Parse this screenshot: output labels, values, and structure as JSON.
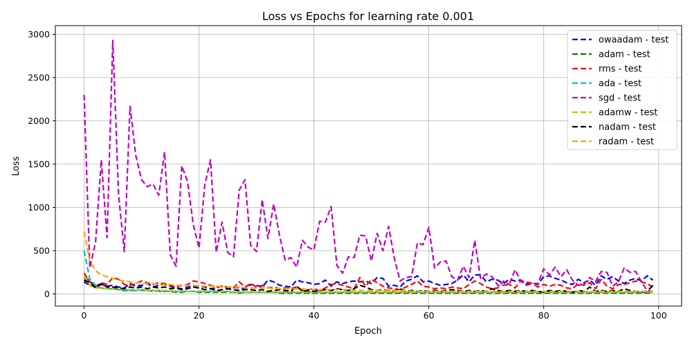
{
  "chart_data": {
    "type": "line",
    "title": "Loss vs Epochs for learning rate 0.001",
    "xlabel": "Epoch",
    "ylabel": "Loss",
    "xlim": [
      -5,
      104
    ],
    "ylim": [
      -140,
      3100
    ],
    "xticks": [
      0,
      20,
      40,
      60,
      80,
      100
    ],
    "yticks": [
      0,
      500,
      1000,
      1500,
      2000,
      2500,
      3000
    ],
    "grid": true,
    "legend_position": "top-right",
    "line_style": "dashed",
    "x": [
      0,
      1,
      2,
      3,
      4,
      5,
      6,
      7,
      8,
      9,
      10,
      11,
      12,
      13,
      14,
      15,
      16,
      17,
      18,
      19,
      20,
      21,
      22,
      23,
      24,
      25,
      26,
      27,
      28,
      29,
      30,
      31,
      32,
      33,
      34,
      35,
      36,
      37,
      38,
      39,
      40,
      41,
      42,
      43,
      44,
      45,
      46,
      47,
      48,
      49,
      50,
      51,
      52,
      53,
      54,
      55,
      56,
      57,
      58,
      59,
      60,
      61,
      62,
      63,
      64,
      65,
      66,
      67,
      68,
      69,
      70,
      71,
      72,
      73,
      74,
      75,
      76,
      77,
      78,
      79,
      80,
      81,
      82,
      83,
      84,
      85,
      86,
      87,
      88,
      89,
      90,
      91,
      92,
      93,
      94,
      95,
      96,
      97,
      98,
      99
    ],
    "series": [
      {
        "name": "owaadam - test",
        "color": "#0000ff",
        "values": [
          140,
          100,
          80,
          110,
          90,
          100,
          80,
          70,
          120,
          90,
          100,
          120,
          80,
          100,
          110,
          90,
          70,
          60,
          80,
          100,
          90,
          80,
          60,
          70,
          90,
          60,
          80,
          70,
          60,
          110,
          100,
          80,
          160,
          140,
          100,
          90,
          80,
          160,
          140,
          130,
          110,
          120,
          160,
          90,
          140,
          120,
          140,
          150,
          140,
          150,
          120,
          190,
          180,
          90,
          100,
          80,
          150,
          170,
          210,
          140,
          150,
          120,
          100,
          110,
          120,
          160,
          220,
          140,
          220,
          220,
          140,
          170,
          160,
          120,
          170,
          150,
          160,
          120,
          130,
          110,
          200,
          210,
          180,
          160,
          130,
          110,
          170,
          130,
          160,
          100,
          210,
          170,
          200,
          150,
          120,
          160,
          180,
          150,
          210,
          160
        ]
      },
      {
        "name": "adam - test",
        "color": "#008000",
        "values": [
          180,
          160,
          80,
          70,
          60,
          60,
          50,
          40,
          40,
          40,
          50,
          40,
          30,
          40,
          30,
          30,
          20,
          20,
          30,
          30,
          20,
          20,
          20,
          20,
          20,
          20,
          20,
          10,
          20,
          20,
          20,
          20,
          20,
          20,
          10,
          10,
          10,
          10,
          10,
          10,
          10,
          10,
          10,
          10,
          10,
          10,
          10,
          10,
          10,
          10,
          10,
          10,
          10,
          10,
          10,
          10,
          10,
          10,
          10,
          10,
          10,
          10,
          10,
          10,
          10,
          10,
          10,
          10,
          10,
          10,
          10,
          10,
          10,
          10,
          10,
          10,
          10,
          10,
          10,
          10,
          10,
          10,
          10,
          10,
          10,
          10,
          10,
          10,
          10,
          10,
          10,
          10,
          10,
          10,
          10,
          10,
          10,
          10,
          10,
          10
        ]
      },
      {
        "name": "rms - test",
        "color": "#ff0000",
        "values": [
          240,
          140,
          90,
          130,
          110,
          190,
          170,
          110,
          100,
          120,
          150,
          130,
          110,
          130,
          120,
          100,
          80,
          100,
          110,
          150,
          140,
          120,
          100,
          80,
          90,
          80,
          70,
          140,
          80,
          120,
          80,
          100,
          70,
          80,
          60,
          70,
          60,
          80,
          40,
          50,
          60,
          40,
          70,
          110,
          120,
          100,
          80,
          60,
          190,
          90,
          170,
          130,
          90,
          70,
          60,
          50,
          80,
          110,
          150,
          90,
          80,
          60,
          70,
          60,
          80,
          70,
          60,
          110,
          150,
          120,
          80,
          60,
          70,
          150,
          110,
          70,
          150,
          140,
          120,
          80,
          110,
          90,
          110,
          100,
          70,
          60,
          120,
          100,
          130,
          60,
          170,
          90,
          60,
          110,
          110,
          130,
          150,
          140,
          120,
          80
        ]
      },
      {
        "name": "ada - test",
        "color": "#00bfbf",
        "values": [
          500,
          170,
          100,
          70,
          60,
          60,
          50,
          50,
          40,
          40,
          40,
          40,
          40,
          30,
          30,
          30,
          30,
          30,
          30,
          30,
          30,
          30,
          30,
          30,
          30,
          30,
          20,
          20,
          20,
          20,
          20,
          20,
          20,
          20,
          20,
          20,
          20,
          20,
          20,
          20,
          20,
          20,
          20,
          20,
          20,
          20,
          20,
          20,
          20,
          20,
          20,
          20,
          20,
          20,
          20,
          20,
          20,
          20,
          20,
          20,
          20,
          20,
          20,
          20,
          20,
          20,
          20,
          20,
          20,
          20,
          20,
          20,
          20,
          20,
          20,
          20,
          20,
          20,
          20,
          20,
          20,
          20,
          20,
          20,
          20,
          20,
          20,
          20,
          20,
          20,
          20,
          20,
          20,
          20,
          20,
          20,
          20,
          20,
          20,
          20
        ]
      },
      {
        "name": "sgd - test",
        "color": "#bf00bf",
        "values": [
          2300,
          300,
          600,
          1550,
          650,
          2930,
          1150,
          490,
          2170,
          1600,
          1320,
          1240,
          1270,
          1140,
          1640,
          450,
          320,
          1480,
          1300,
          800,
          530,
          1260,
          1550,
          480,
          830,
          480,
          430,
          1200,
          1320,
          560,
          490,
          1090,
          640,
          1040,
          680,
          390,
          420,
          310,
          620,
          540,
          510,
          840,
          830,
          1010,
          330,
          240,
          430,
          420,
          680,
          670,
          380,
          700,
          500,
          780,
          410,
          150,
          190,
          200,
          590,
          570,
          770,
          300,
          370,
          380,
          200,
          160,
          320,
          190,
          620,
          180,
          230,
          200,
          100,
          100,
          110,
          280,
          150,
          100,
          120,
          120,
          290,
          220,
          310,
          200,
          280,
          160,
          100,
          110,
          190,
          140,
          260,
          250,
          90,
          140,
          300,
          250,
          260,
          140,
          40,
          30
        ]
      },
      {
        "name": "adamw - test",
        "color": "#bfbf00",
        "values": [
          200,
          100,
          70,
          70,
          60,
          70,
          60,
          50,
          50,
          50,
          50,
          40,
          40,
          40,
          40,
          40,
          30,
          30,
          30,
          30,
          30,
          30,
          30,
          30,
          30,
          30,
          20,
          20,
          20,
          20,
          20,
          20,
          20,
          20,
          20,
          20,
          20,
          20,
          20,
          20,
          20,
          20,
          20,
          20,
          20,
          20,
          20,
          20,
          20,
          20,
          20,
          20,
          20,
          20,
          20,
          20,
          20,
          20,
          20,
          20,
          20,
          20,
          20,
          20,
          20,
          20,
          20,
          20,
          20,
          20,
          20,
          20,
          20,
          20,
          20,
          20,
          20,
          20,
          20,
          20,
          20,
          20,
          20,
          20,
          20,
          20,
          20,
          20,
          20,
          20,
          20,
          20,
          20,
          20,
          20,
          20,
          20,
          20,
          20,
          20
        ]
      },
      {
        "name": "nadam - test",
        "color": "#000000",
        "values": [
          160,
          130,
          70,
          120,
          80,
          80,
          70,
          60,
          80,
          70,
          80,
          60,
          80,
          70,
          80,
          60,
          70,
          50,
          60,
          80,
          70,
          50,
          60,
          40,
          50,
          60,
          50,
          40,
          50,
          50,
          40,
          50,
          30,
          40,
          50,
          40,
          30,
          90,
          30,
          40,
          30,
          40,
          50,
          40,
          60,
          50,
          40,
          60,
          100,
          80,
          50,
          40,
          50,
          40,
          40,
          60,
          30,
          40,
          30,
          40,
          30,
          40,
          30,
          40,
          50,
          40,
          30,
          40,
          30,
          40,
          30,
          60,
          40,
          30,
          40,
          30,
          40,
          30,
          40,
          30,
          20,
          40,
          30,
          40,
          30,
          20,
          40,
          30,
          80,
          30,
          40,
          30,
          40,
          30,
          60,
          40,
          30,
          20,
          30,
          100
        ]
      },
      {
        "name": "radam - test",
        "color": "#ffa500",
        "values": [
          720,
          380,
          270,
          220,
          200,
          180,
          160,
          150,
          140,
          130,
          130,
          120,
          120,
          110,
          110,
          110,
          100,
          100,
          100,
          100,
          90,
          90,
          90,
          90,
          80,
          80,
          80,
          80,
          70,
          70,
          70,
          70,
          70,
          60,
          60,
          60,
          60,
          60,
          60,
          50,
          50,
          50,
          50,
          50,
          50,
          50,
          50,
          40,
          40,
          40,
          40,
          40,
          40,
          40,
          40,
          40,
          40,
          30,
          30,
          30,
          30,
          30,
          30,
          30,
          30,
          30,
          30,
          30,
          30,
          30,
          30,
          30,
          30,
          30,
          30,
          30,
          30,
          30,
          30,
          30,
          30,
          30,
          30,
          30,
          30,
          30,
          30,
          30,
          30,
          30,
          30,
          30,
          30,
          30,
          30,
          30,
          30,
          30,
          30,
          30
        ]
      }
    ]
  }
}
